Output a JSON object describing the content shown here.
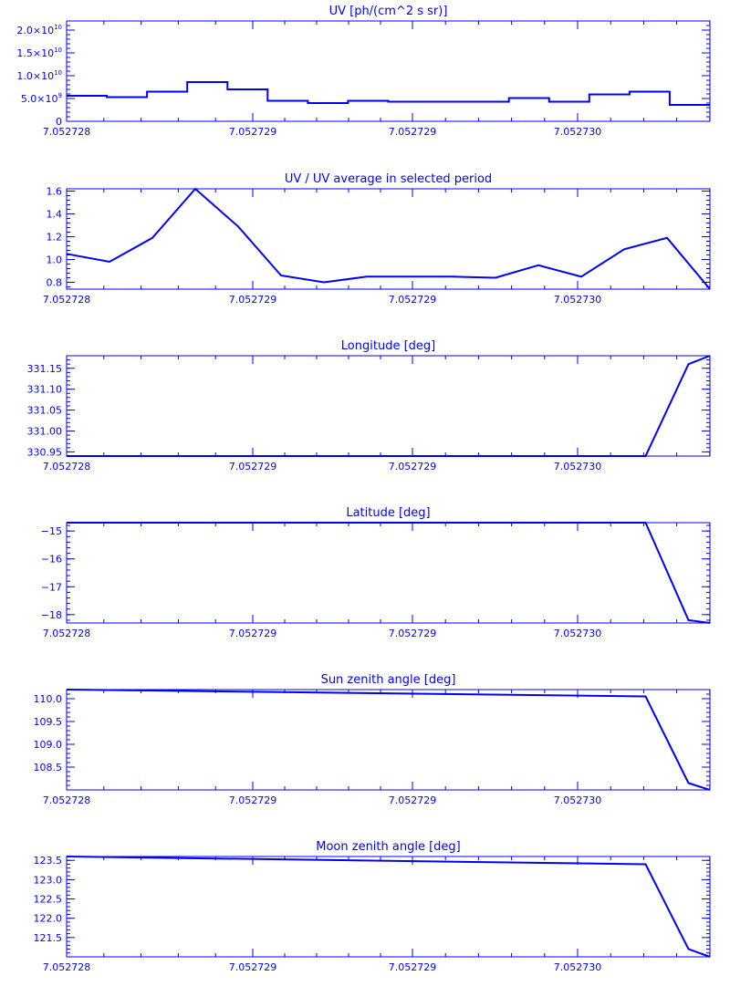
{
  "style": {
    "color": "#0000ff",
    "background": "#ffffff"
  },
  "x_tick_labels": [
    "7.052728",
    "7.052729",
    "7.052729",
    "7.052730"
  ],
  "chart_data": [
    {
      "type": "line",
      "step": true,
      "title": "UV [ph/(cm^2 s sr)]",
      "xlim": [
        0,
        15
      ],
      "ylim": [
        0,
        22000000000.0
      ],
      "y_ticks": [
        {
          "value": 0,
          "label": "0"
        },
        {
          "value": 5000000000.0,
          "label": "5.0×10",
          "exp": "9"
        },
        {
          "value": 10000000000.0,
          "label": "1.0×10",
          "exp": "10"
        },
        {
          "value": 15000000000.0,
          "label": "1.5×10",
          "exp": "10"
        },
        {
          "value": 20000000000.0,
          "label": "2.0×10",
          "exp": "10"
        }
      ],
      "x": [
        0,
        1,
        2,
        3,
        4,
        5,
        6,
        7,
        8,
        9,
        10,
        11,
        12,
        13,
        14,
        15
      ],
      "values": [
        5600000000.0,
        5300000000.0,
        6500000000.0,
        8600000000.0,
        7000000000.0,
        4500000000.0,
        4000000000.0,
        4500000000.0,
        4300000000.0,
        4300000000.0,
        4300000000.0,
        5100000000.0,
        4300000000.0,
        5900000000.0,
        6500000000.0,
        3600000000.0
      ]
    },
    {
      "type": "line",
      "title": "UV / UV average in selected period",
      "xlim": [
        0,
        15
      ],
      "ylim": [
        0.74,
        1.62
      ],
      "y_ticks": [
        {
          "value": 0.8,
          "label": "0.8"
        },
        {
          "value": 1.0,
          "label": "1.0"
        },
        {
          "value": 1.2,
          "label": "1.2"
        },
        {
          "value": 1.4,
          "label": "1.4"
        },
        {
          "value": 1.6,
          "label": "1.6"
        }
      ],
      "x": [
        0,
        1,
        2,
        3,
        4,
        5,
        6,
        7,
        8,
        9,
        10,
        11,
        12,
        13,
        14,
        15
      ],
      "values": [
        1.05,
        0.98,
        1.19,
        1.62,
        1.29,
        0.86,
        0.8,
        0.85,
        0.85,
        0.85,
        0.84,
        0.95,
        0.85,
        1.09,
        1.19,
        0.74
      ]
    },
    {
      "type": "line",
      "title": "Longitude [deg]",
      "xlim": [
        0,
        15
      ],
      "ylim": [
        330.94,
        331.18
      ],
      "y_ticks": [
        {
          "value": 330.95,
          "label": "330.95"
        },
        {
          "value": 331.0,
          "label": "331.00"
        },
        {
          "value": 331.05,
          "label": "331.05"
        },
        {
          "value": 331.1,
          "label": "331.10"
        },
        {
          "value": 331.15,
          "label": "331.15"
        }
      ],
      "x": [
        0,
        13.5,
        14.5,
        15
      ],
      "values": [
        330.94,
        330.94,
        331.16,
        331.18
      ]
    },
    {
      "type": "line",
      "title": "Latitude [deg]",
      "xlim": [
        0,
        15
      ],
      "ylim": [
        -18.3,
        -14.7
      ],
      "y_ticks": [
        {
          "value": -18,
          "label": "−18"
        },
        {
          "value": -17,
          "label": "−17"
        },
        {
          "value": -16,
          "label": "−16"
        },
        {
          "value": -15,
          "label": "−15"
        }
      ],
      "x": [
        0,
        13.5,
        14.5,
        15
      ],
      "values": [
        -14.7,
        -14.7,
        -18.2,
        -18.3
      ]
    },
    {
      "type": "line",
      "title": "Sun zenith angle [deg]",
      "xlim": [
        0,
        15
      ],
      "ylim": [
        108.0,
        110.2
      ],
      "y_ticks": [
        {
          "value": 108.5,
          "label": "108.5"
        },
        {
          "value": 109.0,
          "label": "109.0"
        },
        {
          "value": 109.5,
          "label": "109.5"
        },
        {
          "value": 110.0,
          "label": "110.0"
        }
      ],
      "x": [
        0,
        13.5,
        14.5,
        15
      ],
      "values": [
        110.2,
        110.05,
        108.15,
        108.0
      ]
    },
    {
      "type": "line",
      "title": "Moon zenith angle [deg]",
      "xlim": [
        0,
        15
      ],
      "ylim": [
        121.0,
        123.6
      ],
      "y_ticks": [
        {
          "value": 121.5,
          "label": "121.5"
        },
        {
          "value": 122.0,
          "label": "122.0"
        },
        {
          "value": 122.5,
          "label": "122.5"
        },
        {
          "value": 123.0,
          "label": "123.0"
        },
        {
          "value": 123.5,
          "label": "123.5"
        }
      ],
      "x": [
        0,
        13.5,
        14.5,
        15
      ],
      "values": [
        123.6,
        123.4,
        121.2,
        121.0
      ]
    }
  ]
}
